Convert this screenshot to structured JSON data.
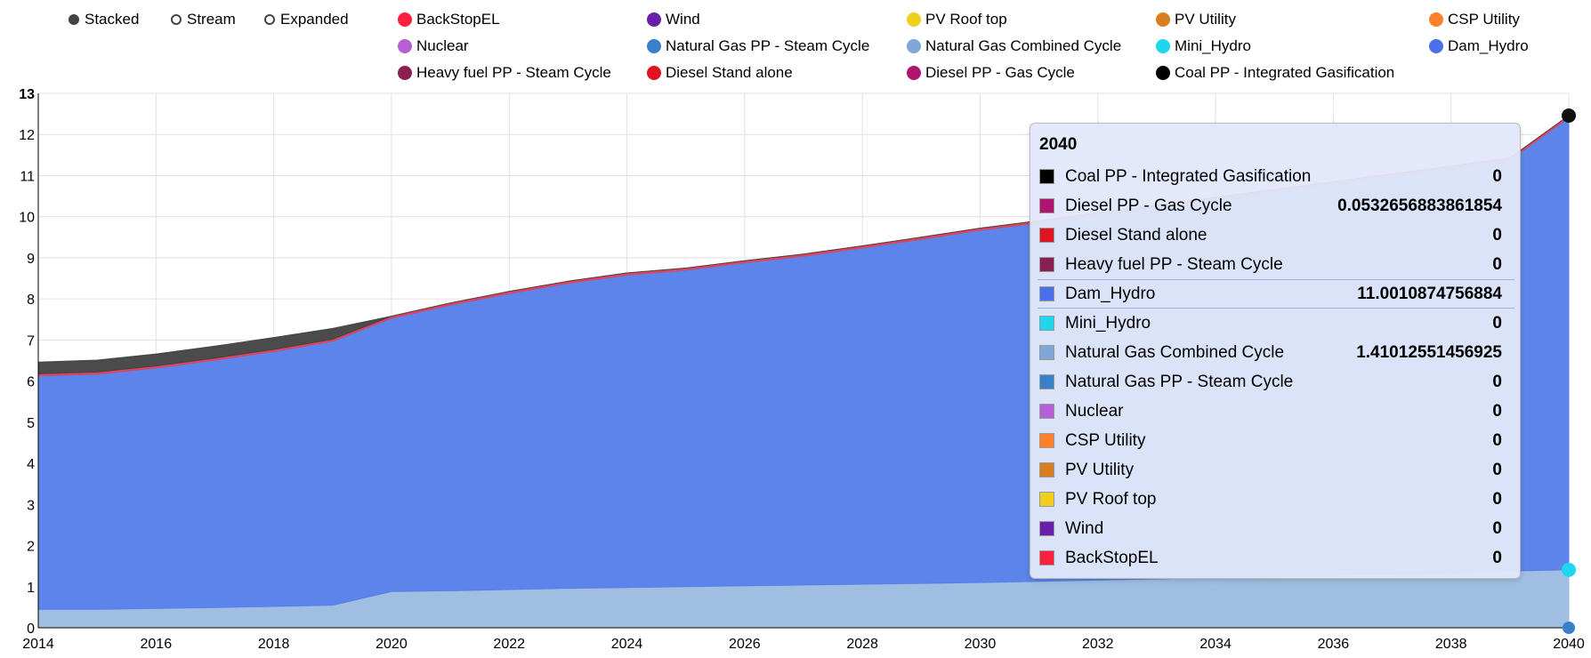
{
  "controls": {
    "modes": [
      {
        "label": "Stacked",
        "selected": true
      },
      {
        "label": "Stream",
        "selected": false
      },
      {
        "label": "Expanded",
        "selected": false
      }
    ]
  },
  "legend": [
    {
      "name": "BackStopEL",
      "color": "#ff1f3f"
    },
    {
      "name": "Wind",
      "color": "#6b1fa8"
    },
    {
      "name": "PV Roof top",
      "color": "#f0cf1f"
    },
    {
      "name": "PV Utility",
      "color": "#d97d21"
    },
    {
      "name": "CSP Utility",
      "color": "#ff7f2a"
    },
    {
      "name": "Nuclear",
      "color": "#b560d4"
    },
    {
      "name": "Natural Gas PP - Steam Cycle",
      "color": "#3a80c8"
    },
    {
      "name": "Natural Gas Combined Cycle",
      "color": "#7fa6d6"
    },
    {
      "name": "Mini_Hydro",
      "color": "#1ed6ee"
    },
    {
      "name": "Dam_Hydro",
      "color": "#4a6fe8"
    },
    {
      "name": "Heavy fuel PP - Steam Cycle",
      "color": "#8a1f52"
    },
    {
      "name": "Diesel Stand alone",
      "color": "#e0141e"
    },
    {
      "name": "Diesel PP - Gas Cycle",
      "color": "#b0146e"
    },
    {
      "name": "Coal PP - Integrated Gasification",
      "color": "#000000"
    }
  ],
  "chart_data": {
    "type": "area",
    "stacked": true,
    "x": [
      2014,
      2015,
      2016,
      2017,
      2018,
      2019,
      2020,
      2021,
      2022,
      2023,
      2024,
      2025,
      2026,
      2027,
      2028,
      2029,
      2030,
      2031,
      2032,
      2033,
      2034,
      2035,
      2036,
      2037,
      2038,
      2039,
      2040
    ],
    "xticks": [
      2014,
      2016,
      2018,
      2020,
      2022,
      2024,
      2026,
      2028,
      2030,
      2032,
      2034,
      2036,
      2038,
      2040
    ],
    "xtick_labels": [
      "2014",
      "2016",
      "2018",
      "2020",
      "2022",
      "2024",
      "2026",
      "2028",
      "2030",
      "2032",
      "2034",
      "2036",
      "2038",
      "2040"
    ],
    "ylim": [
      0,
      13
    ],
    "yticks": [
      0,
      1,
      2,
      3,
      4,
      5,
      6,
      7,
      8,
      9,
      10,
      11,
      12,
      13
    ],
    "ytick_labels": [
      "0",
      "1",
      "2",
      "3",
      "4",
      "5",
      "6",
      "7",
      "8",
      "9",
      "10",
      "11",
      "12",
      "13"
    ],
    "grid": true,
    "series": [
      {
        "name": "Natural Gas Combined Cycle",
        "color": "#9bbbe0",
        "values": [
          0.45,
          0.45,
          0.47,
          0.49,
          0.52,
          0.55,
          0.88,
          0.9,
          0.93,
          0.96,
          0.98,
          1.0,
          1.02,
          1.04,
          1.06,
          1.08,
          1.1,
          1.13,
          1.16,
          1.19,
          1.22,
          1.25,
          1.28,
          1.31,
          1.34,
          1.38,
          1.41
        ]
      },
      {
        "name": "Dam_Hydro",
        "color": "#567fea",
        "values": [
          5.68,
          5.72,
          5.85,
          6.02,
          6.2,
          6.42,
          6.65,
          6.95,
          7.2,
          7.42,
          7.6,
          7.7,
          7.86,
          8.0,
          8.18,
          8.37,
          8.57,
          8.72,
          8.89,
          9.04,
          9.2,
          9.36,
          9.52,
          9.68,
          9.84,
          10.0,
          11.0
        ]
      },
      {
        "name": "Diesel PP - Gas Cycle",
        "color": "#e04058",
        "values": [
          0.05,
          0.05,
          0.05,
          0.05,
          0.05,
          0.05,
          0.05,
          0.05,
          0.05,
          0.05,
          0.05,
          0.05,
          0.05,
          0.05,
          0.05,
          0.05,
          0.05,
          0.05,
          0.05,
          0.05,
          0.05,
          0.05,
          0.05,
          0.05,
          0.05,
          0.05,
          0.05
        ]
      },
      {
        "name": "Coal PP - Integrated Gasification",
        "color": "#444444",
        "values": [
          0.28,
          0.29,
          0.29,
          0.29,
          0.29,
          0.26,
          0,
          0,
          0,
          0,
          0,
          0,
          0,
          0,
          0,
          0,
          0,
          0,
          0,
          0,
          0,
          0,
          0,
          0,
          0,
          0,
          0
        ]
      }
    ]
  },
  "tooltip": {
    "title": "2040",
    "highlight_index": 4,
    "rows": [
      {
        "name": "Coal PP - Integrated Gasification",
        "value": "0",
        "color": "#000000"
      },
      {
        "name": "Diesel PP - Gas Cycle",
        "value": "0.0532656883861854",
        "color": "#b0146e"
      },
      {
        "name": "Diesel Stand alone",
        "value": "0",
        "color": "#e0141e"
      },
      {
        "name": "Heavy fuel PP - Steam Cycle",
        "value": "0",
        "color": "#8a1f52"
      },
      {
        "name": "Dam_Hydro",
        "value": "11.0010874756884",
        "color": "#4a6fe8"
      },
      {
        "name": "Mini_Hydro",
        "value": "0",
        "color": "#1ed6ee"
      },
      {
        "name": "Natural Gas Combined Cycle",
        "value": "1.41012551456925",
        "color": "#7fa6d6"
      },
      {
        "name": "Natural Gas PP - Steam Cycle",
        "value": "0",
        "color": "#3a80c8"
      },
      {
        "name": "Nuclear",
        "value": "0",
        "color": "#b560d4"
      },
      {
        "name": "CSP Utility",
        "value": "0",
        "color": "#ff7f2a"
      },
      {
        "name": "PV Utility",
        "value": "0",
        "color": "#d97d21"
      },
      {
        "name": "PV Roof top",
        "value": "0",
        "color": "#f0cf1f"
      },
      {
        "name": "Wind",
        "value": "0",
        "color": "#6b1fa8"
      },
      {
        "name": "BackStopEL",
        "value": "0",
        "color": "#ff1f3f"
      }
    ]
  }
}
